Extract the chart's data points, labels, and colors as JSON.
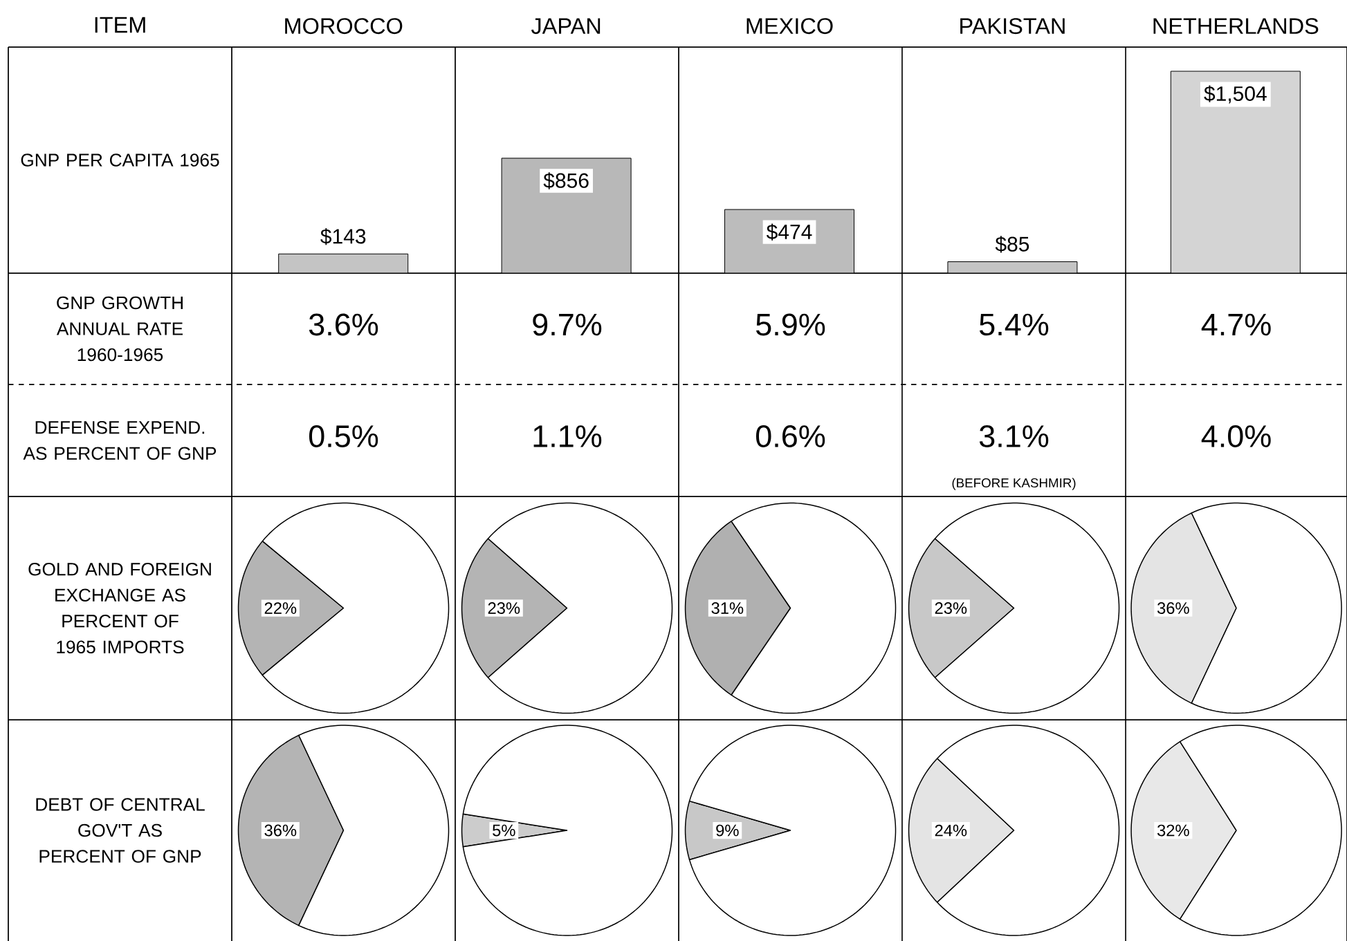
{
  "chart_data": [
    {
      "type": "bar",
      "title": "GNP PER CAPITA 1965",
      "annotations": [
        "ITEM"
      ],
      "categories": [
        "MOROCCO",
        "JAPAN",
        "MEXICO",
        "PAKISTAN",
        "NETHERLANDS"
      ],
      "values": [
        143,
        856,
        474,
        85,
        1504
      ],
      "value_labels": [
        "$143",
        "$856",
        "$474",
        "$85",
        "$1,504"
      ],
      "colors": [
        "#c4c4c4",
        "#b8b8b8",
        "#bcbcbc",
        "#c4c4c4",
        "#d4d4d4"
      ]
    },
    {
      "type": "other",
      "title": "GNP GROWTH ANNUAL RATE 1960-1965",
      "annotations": [
        "3.6%",
        "9.7%",
        "5.9%",
        "5.4%",
        "4.7%"
      ]
    },
    {
      "type": "other",
      "title": "DEFENSE EXPEND. AS PERCENT OF GNP",
      "annotations": [
        "0.5%",
        "1.1%",
        "0.6%",
        "3.1%",
        "4.0%",
        "(BEFORE KASHMIR)"
      ]
    },
    {
      "type": "pie",
      "title": "GOLD AND FOREIGN EXCHANGE AS PERCENT OF 1965 IMPORTS",
      "categories": [
        null,
        null
      ],
      "values": [
        22,
        78
      ],
      "value_labels": [
        "22%",
        null
      ],
      "colors": [
        "#b4b4b4",
        "#ffffff"
      ]
    },
    {
      "type": "pie",
      "categories": [
        null,
        null
      ],
      "values": [
        23,
        77
      ],
      "value_labels": [
        "23%",
        null
      ],
      "colors": [
        "#b4b4b4",
        "#ffffff"
      ]
    },
    {
      "type": "pie",
      "categories": [
        null,
        null
      ],
      "values": [
        31,
        69
      ],
      "value_labels": [
        "31%",
        null
      ],
      "colors": [
        "#b0b0b0",
        "#ffffff"
      ]
    },
    {
      "type": "pie",
      "categories": [
        null,
        null
      ],
      "values": [
        23,
        77
      ],
      "value_labels": [
        "23%",
        null
      ],
      "colors": [
        "#c8c8c8",
        "#ffffff"
      ]
    },
    {
      "type": "pie",
      "categories": [
        null,
        null
      ],
      "values": [
        36,
        64
      ],
      "value_labels": [
        "36%",
        null
      ],
      "colors": [
        "#e4e4e4",
        "#ffffff"
      ]
    },
    {
      "type": "pie",
      "title": "DEBT OF CENTRAL GOV'T AS PERCENT OF GNP",
      "categories": [
        null,
        null
      ],
      "values": [
        36,
        64
      ],
      "value_labels": [
        "36%",
        null
      ],
      "colors": [
        "#b4b4b4",
        "#ffffff"
      ]
    },
    {
      "type": "pie",
      "categories": [
        null,
        null
      ],
      "values": [
        5,
        95
      ],
      "value_labels": [
        "5%",
        null
      ],
      "colors": [
        "#cccccc",
        "#ffffff"
      ]
    },
    {
      "type": "pie",
      "categories": [
        null,
        null
      ],
      "values": [
        9,
        91
      ],
      "value_labels": [
        "9%",
        null
      ],
      "colors": [
        "#c8c8c8",
        "#ffffff"
      ]
    },
    {
      "type": "pie",
      "categories": [
        null,
        null
      ],
      "values": [
        24,
        76
      ],
      "value_labels": [
        "24%",
        null
      ],
      "colors": [
        "#e4e4e4",
        "#ffffff"
      ]
    },
    {
      "type": "pie",
      "categories": [
        null,
        null
      ],
      "values": [
        32,
        68
      ],
      "value_labels": [
        "32%",
        null
      ],
      "colors": [
        "#e8e8e8",
        "#ffffff"
      ]
    }
  ]
}
